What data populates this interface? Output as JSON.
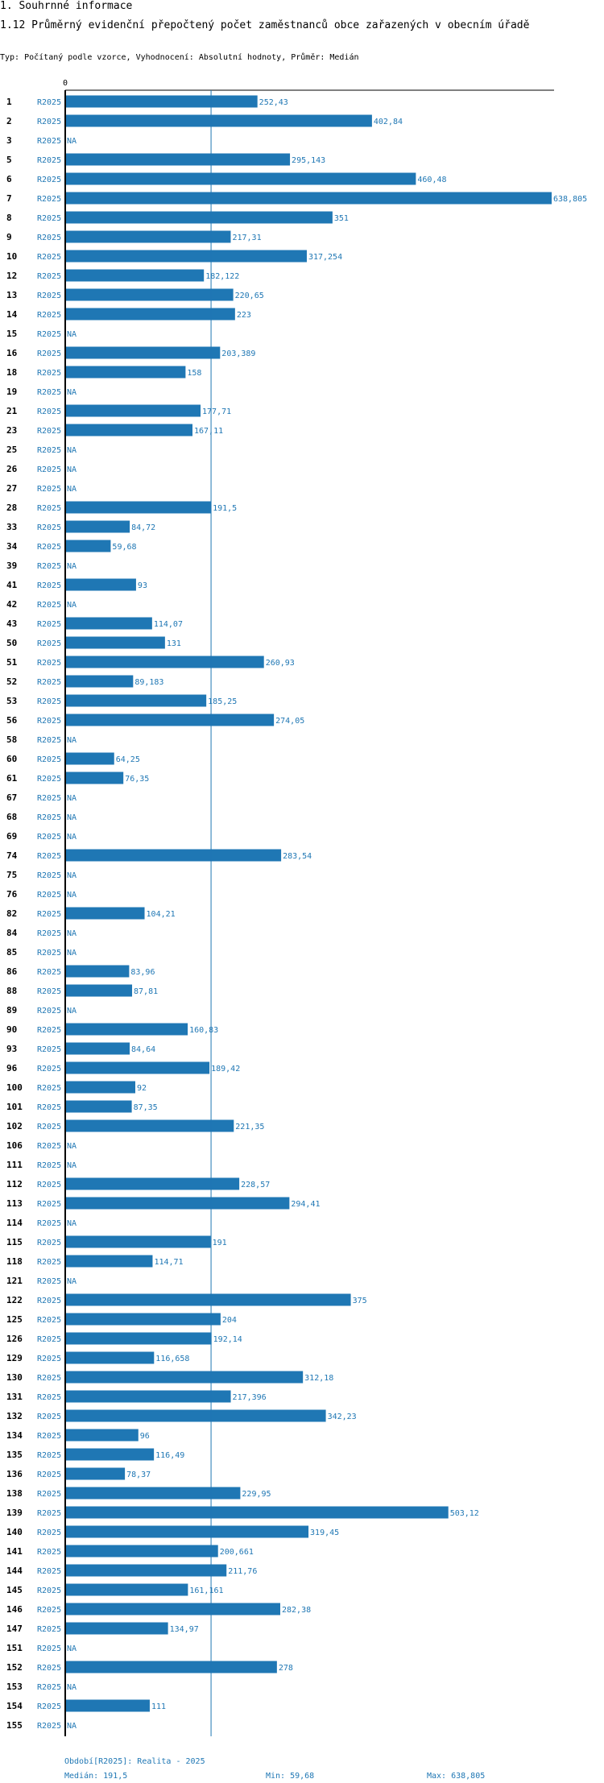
{
  "header": {
    "section": "1. Souhrnné informace",
    "title": "1.12 Průměrný evidenční přepočtený počet zaměstnanců obce zařazených v obecním úřadě",
    "type_line": "Typ: Počítaný podle vzorce, Vyhodnocení: Absolutní hodnoty, Průměr: Medián"
  },
  "chart_data": {
    "type": "bar",
    "orientation": "horizontal",
    "title": "1.12 Průměrný evidenční přepočtený počet zaměstnanců obce zařazených v obecním úřadě",
    "series_name": "R2025",
    "axis_tick": "0",
    "xlim": [
      0,
      638.805
    ],
    "median": 191.5,
    "bar_color": "#1f77b4",
    "rows": [
      {
        "cat": "1",
        "v": 252.43,
        "t": "252,43"
      },
      {
        "cat": "2",
        "v": 402.84,
        "t": "402,84"
      },
      {
        "cat": "3",
        "v": null,
        "t": "NA"
      },
      {
        "cat": "5",
        "v": 295.143,
        "t": "295,143"
      },
      {
        "cat": "6",
        "v": 460.48,
        "t": "460,48"
      },
      {
        "cat": "7",
        "v": 638.805,
        "t": "638,805"
      },
      {
        "cat": "8",
        "v": 351,
        "t": "351"
      },
      {
        "cat": "9",
        "v": 217.31,
        "t": "217,31"
      },
      {
        "cat": "10",
        "v": 317.254,
        "t": "317,254"
      },
      {
        "cat": "12",
        "v": 182.122,
        "t": "182,122"
      },
      {
        "cat": "13",
        "v": 220.65,
        "t": "220,65"
      },
      {
        "cat": "14",
        "v": 223,
        "t": "223"
      },
      {
        "cat": "15",
        "v": null,
        "t": "NA"
      },
      {
        "cat": "16",
        "v": 203.389,
        "t": "203,389"
      },
      {
        "cat": "18",
        "v": 158,
        "t": "158"
      },
      {
        "cat": "19",
        "v": null,
        "t": "NA"
      },
      {
        "cat": "21",
        "v": 177.71,
        "t": "177,71"
      },
      {
        "cat": "23",
        "v": 167.11,
        "t": "167,11"
      },
      {
        "cat": "25",
        "v": null,
        "t": "NA"
      },
      {
        "cat": "26",
        "v": null,
        "t": "NA"
      },
      {
        "cat": "27",
        "v": null,
        "t": "NA"
      },
      {
        "cat": "28",
        "v": 191.5,
        "t": "191,5"
      },
      {
        "cat": "33",
        "v": 84.72,
        "t": "84,72"
      },
      {
        "cat": "34",
        "v": 59.68,
        "t": "59,68"
      },
      {
        "cat": "39",
        "v": null,
        "t": "NA"
      },
      {
        "cat": "41",
        "v": 93,
        "t": "93"
      },
      {
        "cat": "42",
        "v": null,
        "t": "NA"
      },
      {
        "cat": "43",
        "v": 114.07,
        "t": "114,07"
      },
      {
        "cat": "50",
        "v": 131,
        "t": "131"
      },
      {
        "cat": "51",
        "v": 260.93,
        "t": "260,93"
      },
      {
        "cat": "52",
        "v": 89.183,
        "t": "89,183"
      },
      {
        "cat": "53",
        "v": 185.25,
        "t": "185,25"
      },
      {
        "cat": "56",
        "v": 274.05,
        "t": "274,05"
      },
      {
        "cat": "58",
        "v": null,
        "t": "NA"
      },
      {
        "cat": "60",
        "v": 64.25,
        "t": "64,25"
      },
      {
        "cat": "61",
        "v": 76.35,
        "t": "76,35"
      },
      {
        "cat": "67",
        "v": null,
        "t": "NA"
      },
      {
        "cat": "68",
        "v": null,
        "t": "NA"
      },
      {
        "cat": "69",
        "v": null,
        "t": "NA"
      },
      {
        "cat": "74",
        "v": 283.54,
        "t": "283,54"
      },
      {
        "cat": "75",
        "v": null,
        "t": "NA"
      },
      {
        "cat": "76",
        "v": null,
        "t": "NA"
      },
      {
        "cat": "82",
        "v": 104.21,
        "t": "104,21"
      },
      {
        "cat": "84",
        "v": null,
        "t": "NA"
      },
      {
        "cat": "85",
        "v": null,
        "t": "NA"
      },
      {
        "cat": "86",
        "v": 83.96,
        "t": "83,96"
      },
      {
        "cat": "88",
        "v": 87.81,
        "t": "87,81"
      },
      {
        "cat": "89",
        "v": null,
        "t": "NA"
      },
      {
        "cat": "90",
        "v": 160.83,
        "t": "160,83"
      },
      {
        "cat": "93",
        "v": 84.64,
        "t": "84,64"
      },
      {
        "cat": "96",
        "v": 189.42,
        "t": "189,42"
      },
      {
        "cat": "100",
        "v": 92,
        "t": "92"
      },
      {
        "cat": "101",
        "v": 87.35,
        "t": "87,35"
      },
      {
        "cat": "102",
        "v": 221.35,
        "t": "221,35"
      },
      {
        "cat": "106",
        "v": null,
        "t": "NA"
      },
      {
        "cat": "111",
        "v": null,
        "t": "NA"
      },
      {
        "cat": "112",
        "v": 228.57,
        "t": "228,57"
      },
      {
        "cat": "113",
        "v": 294.41,
        "t": "294,41"
      },
      {
        "cat": "114",
        "v": null,
        "t": "NA"
      },
      {
        "cat": "115",
        "v": 191,
        "t": "191"
      },
      {
        "cat": "118",
        "v": 114.71,
        "t": "114,71"
      },
      {
        "cat": "121",
        "v": null,
        "t": "NA"
      },
      {
        "cat": "122",
        "v": 375,
        "t": "375"
      },
      {
        "cat": "125",
        "v": 204,
        "t": "204"
      },
      {
        "cat": "126",
        "v": 192.14,
        "t": "192,14"
      },
      {
        "cat": "129",
        "v": 116.658,
        "t": "116,658"
      },
      {
        "cat": "130",
        "v": 312.18,
        "t": "312,18"
      },
      {
        "cat": "131",
        "v": 217.396,
        "t": "217,396"
      },
      {
        "cat": "132",
        "v": 342.23,
        "t": "342,23"
      },
      {
        "cat": "134",
        "v": 96,
        "t": "96"
      },
      {
        "cat": "135",
        "v": 116.49,
        "t": "116,49"
      },
      {
        "cat": "136",
        "v": 78.37,
        "t": "78,37"
      },
      {
        "cat": "138",
        "v": 229.95,
        "t": "229,95"
      },
      {
        "cat": "139",
        "v": 503.12,
        "t": "503,12"
      },
      {
        "cat": "140",
        "v": 319.45,
        "t": "319,45"
      },
      {
        "cat": "141",
        "v": 200.661,
        "t": "200,661"
      },
      {
        "cat": "144",
        "v": 211.76,
        "t": "211,76"
      },
      {
        "cat": "145",
        "v": 161.161,
        "t": "161,161"
      },
      {
        "cat": "146",
        "v": 282.38,
        "t": "282,38"
      },
      {
        "cat": "147",
        "v": 134.97,
        "t": "134,97"
      },
      {
        "cat": "151",
        "v": null,
        "t": "NA"
      },
      {
        "cat": "152",
        "v": 278,
        "t": "278"
      },
      {
        "cat": "153",
        "v": null,
        "t": "NA"
      },
      {
        "cat": "154",
        "v": 111,
        "t": "111"
      },
      {
        "cat": "155",
        "v": null,
        "t": "NA"
      }
    ]
  },
  "footer": {
    "period": "Období[R2025]: Realita - 2025",
    "median": "Medián: 191,5",
    "min": "Min: 59,68",
    "max": "Max: 638,805"
  }
}
